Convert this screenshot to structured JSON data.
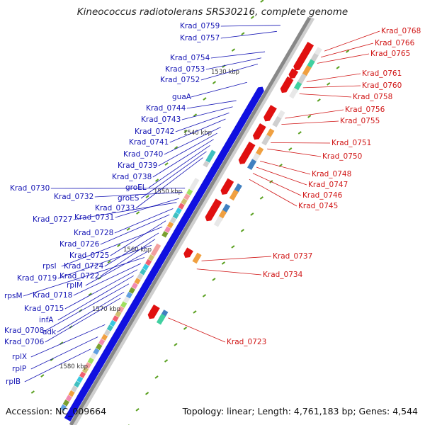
{
  "title": "Kineococcus radiotolerans SRS30216, complete genome",
  "footer": {
    "accession": "Accession: NC_009664",
    "summary": "Topology: linear; Length: 4,761,183 bp; Genes: 4,544"
  },
  "colors": {
    "forward_label": "#1414b4",
    "reverse_label": "#d01414",
    "forward_arrow": "#1010e0",
    "reverse_arrow": "#e01010",
    "backbone": "#888888"
  },
  "ticks": [
    "1530 kbp",
    "1540 kbp",
    "1550 kbp",
    "1560 kbp",
    "1570 kbp",
    "1580 kbp"
  ],
  "forward_labels": [
    "Krad_0759",
    "Krad_0757",
    "Krad_0754",
    "Krad_0753",
    "Krad_0752",
    "guaA",
    "Krad_0744",
    "Krad_0743",
    "Krad_0742",
    "Krad_0741",
    "Krad_0740",
    "Krad_0739",
    "Krad_0738",
    "groEL",
    "groES",
    "Krad_0733",
    "Krad_0730",
    "Krad_0732",
    "Krad_0731",
    "Krad_0727",
    "Krad_0728",
    "Krad_0726",
    "Krad_0725",
    "rpsI",
    "Krad_0724",
    "Krad_0722",
    "Krad_0719",
    "rplM",
    "rpsM",
    "Krad_0718",
    "Krad_0715",
    "infA",
    "Krad_0708",
    "adk",
    "Krad_0706",
    "rplX",
    "rplP",
    "rplB"
  ],
  "reverse_labels": [
    "Krad_0768",
    "Krad_0766",
    "Krad_0765",
    "Krad_0761",
    "Krad_0760",
    "Krad_0758",
    "Krad_0756",
    "Krad_0755",
    "Krad_0751",
    "Krad_0750",
    "Krad_0748",
    "Krad_0747",
    "Krad_0746",
    "Krad_0745",
    "Krad_0737",
    "Krad_0734",
    "Krad_0723"
  ]
}
